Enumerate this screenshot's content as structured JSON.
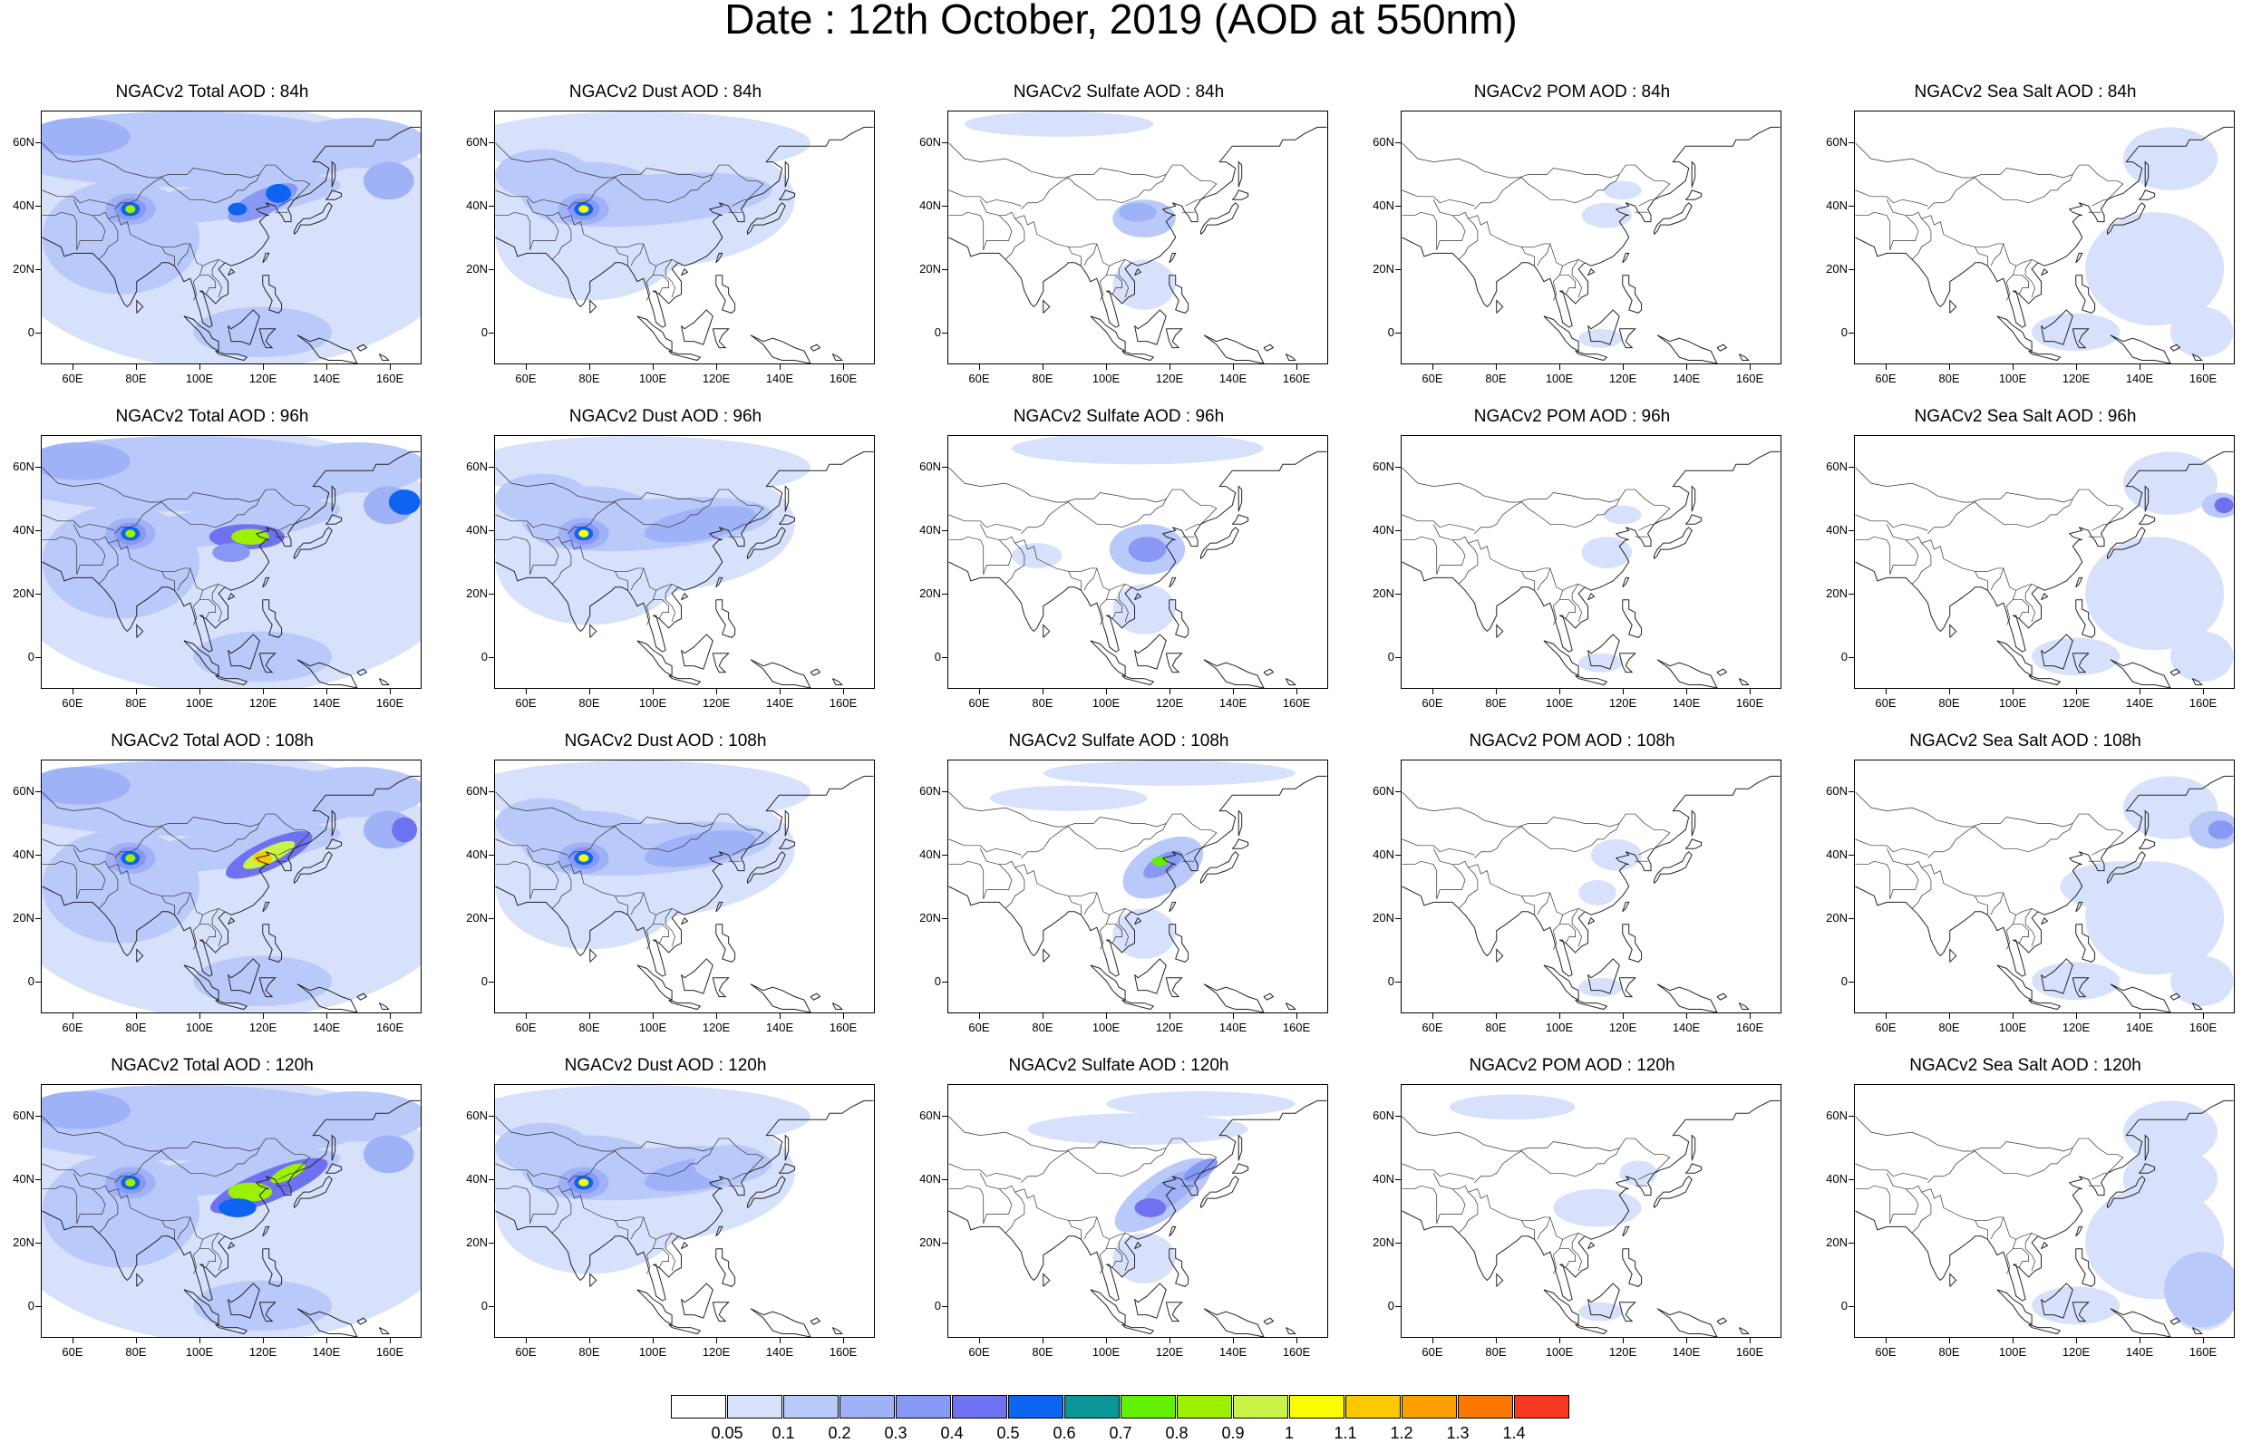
{
  "title": "Date : 12th October, 2019 (AOD at 550nm)",
  "axes": {
    "lon_ticks": [
      "60E",
      "80E",
      "100E",
      "120E",
      "140E",
      "160E"
    ],
    "lat_ticks": [
      "60N",
      "40N",
      "20N",
      "0"
    ],
    "lon_range": [
      50,
      170
    ],
    "lat_range": [
      -10,
      70
    ]
  },
  "panels": [
    {
      "title": "NGACv2 Total AOD : 84h",
      "species": "total",
      "hour": 84
    },
    {
      "title": "NGACv2 Dust AOD : 84h",
      "species": "dust",
      "hour": 84
    },
    {
      "title": "NGACv2 Sulfate AOD : 84h",
      "species": "sulfate",
      "hour": 84
    },
    {
      "title": "NGACv2 POM AOD : 84h",
      "species": "pom",
      "hour": 84
    },
    {
      "title": "NGACv2 Sea Salt AOD : 84h",
      "species": "seasalt",
      "hour": 84
    },
    {
      "title": "NGACv2 Total AOD : 96h",
      "species": "total",
      "hour": 96
    },
    {
      "title": "NGACv2 Dust AOD : 96h",
      "species": "dust",
      "hour": 96
    },
    {
      "title": "NGACv2 Sulfate AOD : 96h",
      "species": "sulfate",
      "hour": 96
    },
    {
      "title": "NGACv2 POM AOD : 96h",
      "species": "pom",
      "hour": 96
    },
    {
      "title": "NGACv2 Sea Salt AOD : 96h",
      "species": "seasalt",
      "hour": 96
    },
    {
      "title": "NGACv2 Total AOD : 108h",
      "species": "total",
      "hour": 108
    },
    {
      "title": "NGACv2 Dust AOD : 108h",
      "species": "dust",
      "hour": 108
    },
    {
      "title": "NGACv2 Sulfate AOD : 108h",
      "species": "sulfate",
      "hour": 108
    },
    {
      "title": "NGACv2 POM AOD : 108h",
      "species": "pom",
      "hour": 108
    },
    {
      "title": "NGACv2 Sea Salt AOD : 108h",
      "species": "seasalt",
      "hour": 108
    },
    {
      "title": "NGACv2 Total AOD : 120h",
      "species": "total",
      "hour": 120
    },
    {
      "title": "NGACv2 Dust AOD : 120h",
      "species": "dust",
      "hour": 120
    },
    {
      "title": "NGACv2 Sulfate AOD : 120h",
      "species": "sulfate",
      "hour": 120
    },
    {
      "title": "NGACv2 POM AOD : 120h",
      "species": "pom",
      "hour": 120
    },
    {
      "title": "NGACv2 Sea Salt  AOD : 120h",
      "species": "seasalt",
      "hour": 120
    }
  ],
  "colorbar": {
    "colors": [
      "#ffffff",
      "#d8e1fb",
      "#b9c9fa",
      "#9fb2f8",
      "#8898f5",
      "#6f72f0",
      "#0c64f0",
      "#0a9696",
      "#62f000",
      "#9cf000",
      "#c8f44a",
      "#fcfc00",
      "#fcc800",
      "#fca000",
      "#fc7800",
      "#f83820"
    ],
    "labels": [
      "0.05",
      "0.1",
      "0.2",
      "0.3",
      "0.4",
      "0.5",
      "0.6",
      "0.7",
      "0.8",
      "0.9",
      "1",
      "1.1",
      "1.2",
      "1.3",
      "1.4"
    ]
  }
}
